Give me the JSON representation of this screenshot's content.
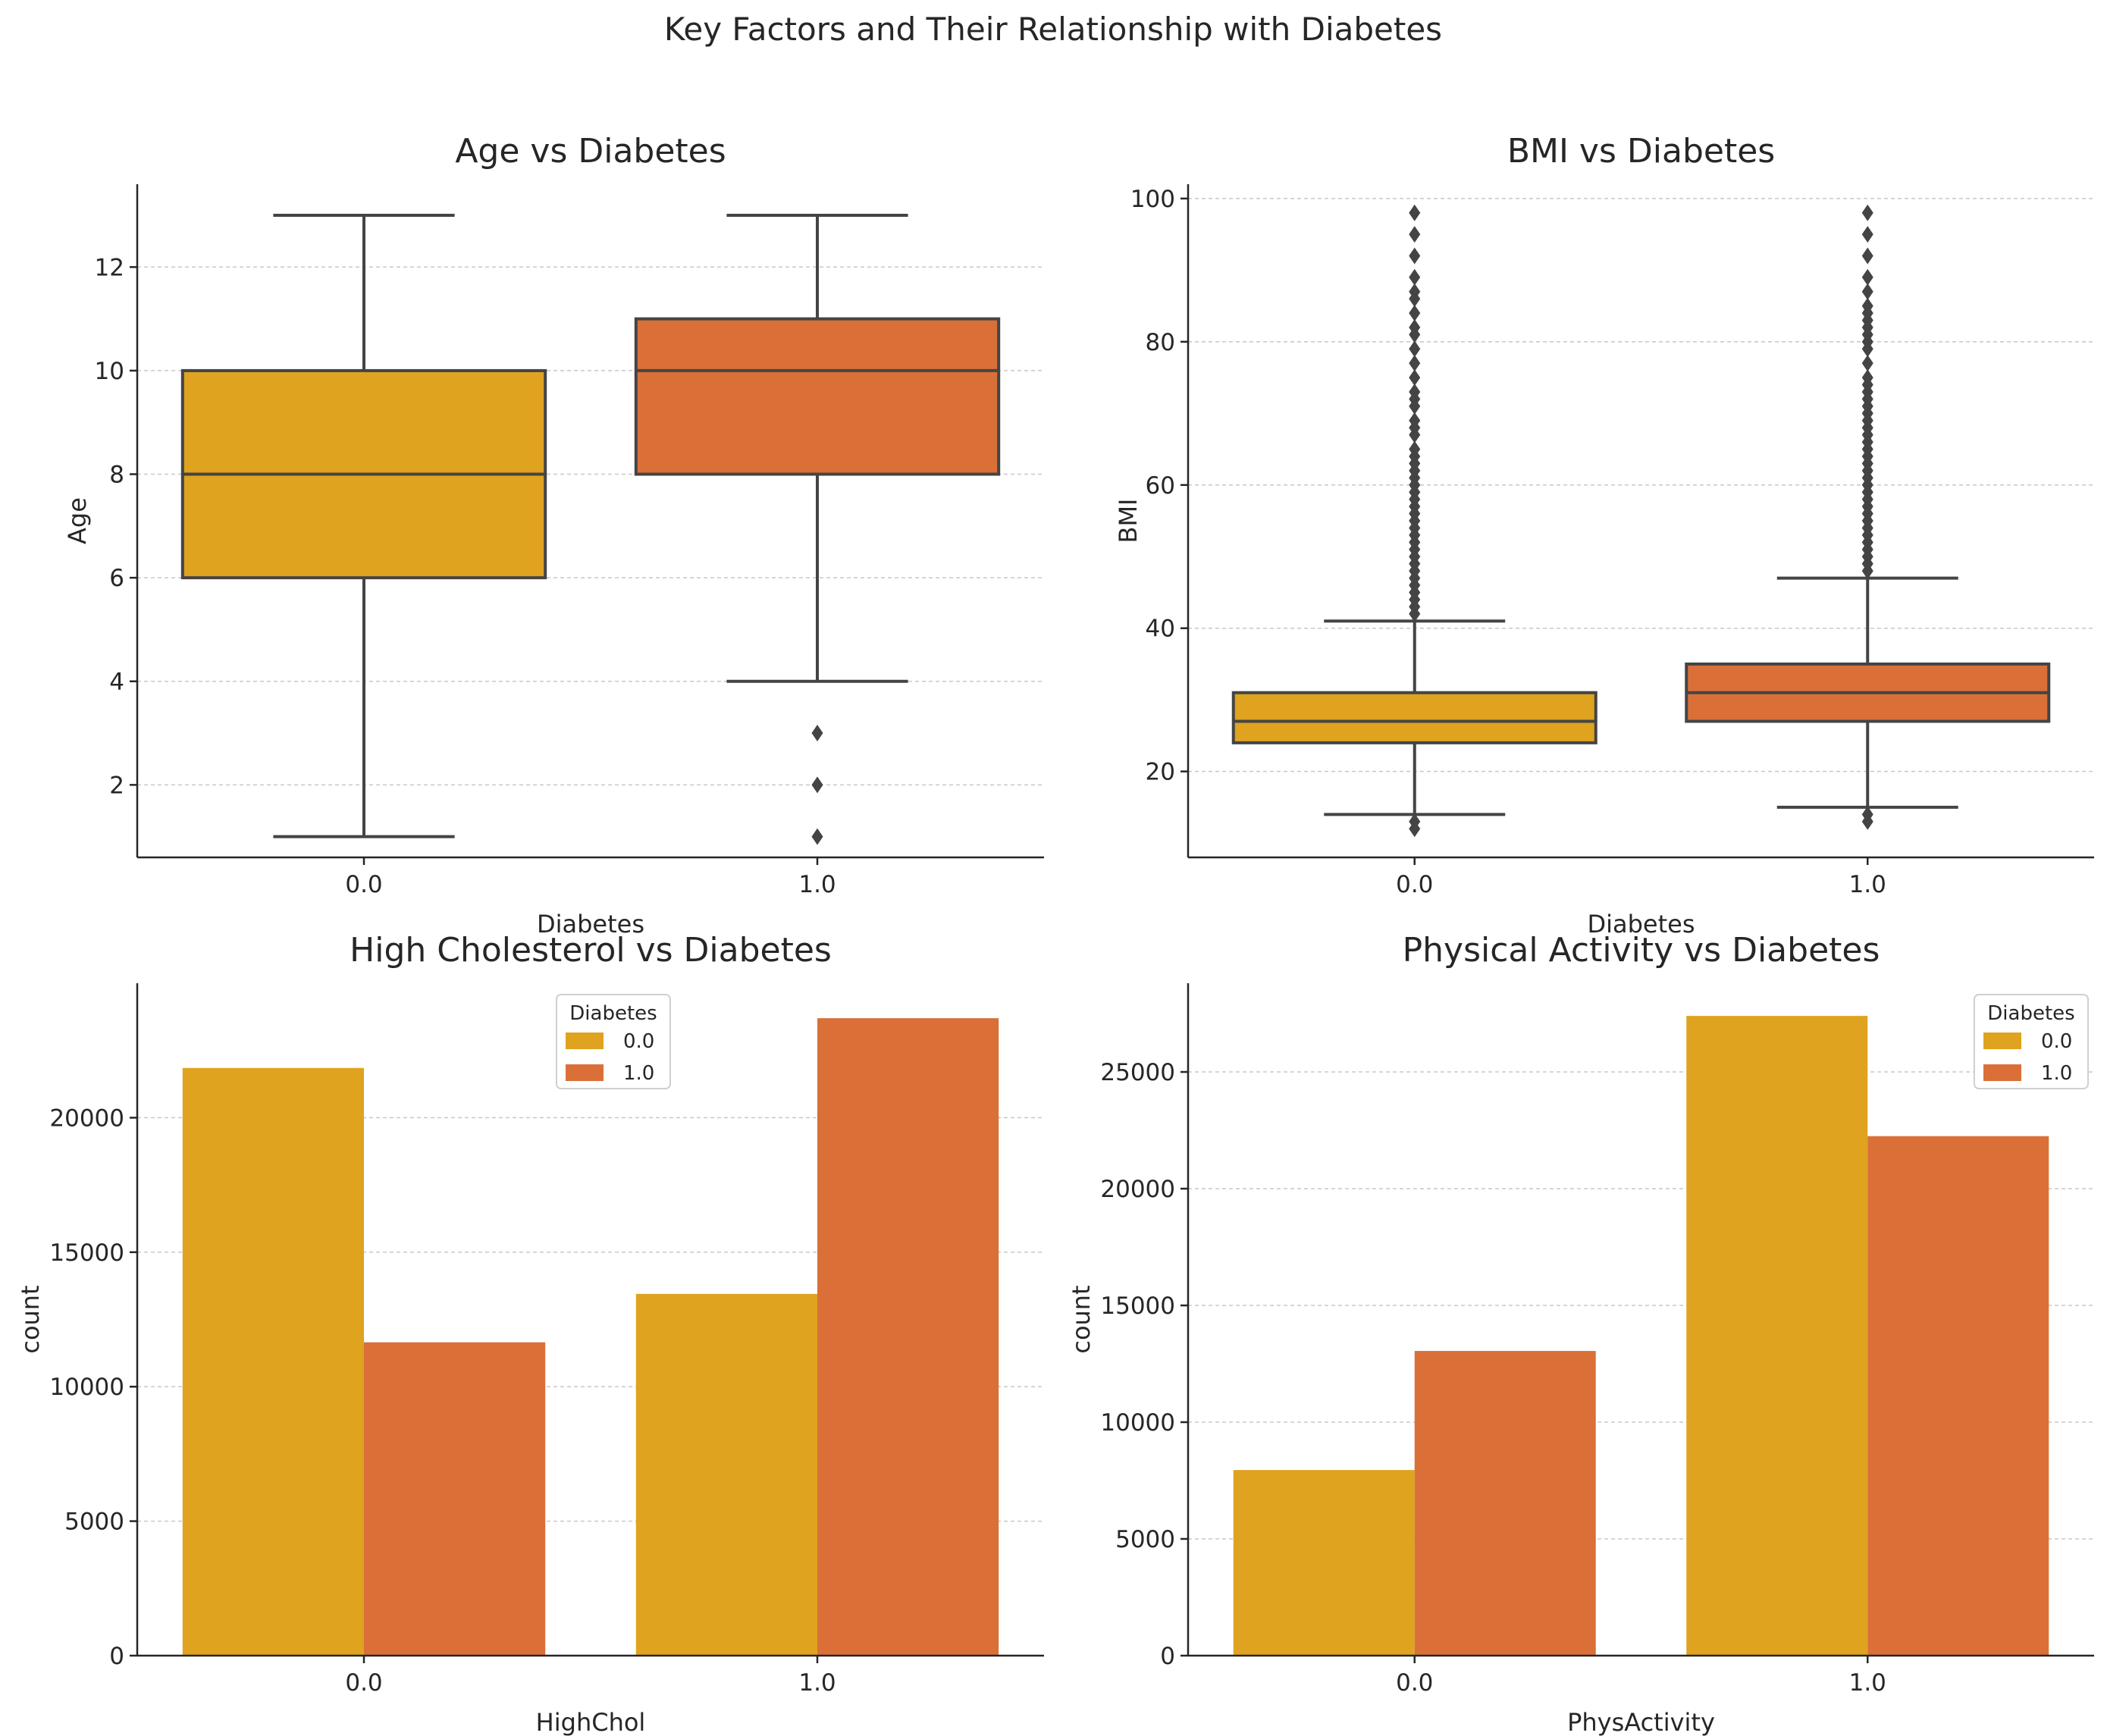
{
  "figure": {
    "title": "Key Factors and Their Relationship with Diabetes"
  },
  "colors": {
    "0.0": "#DFA31F",
    "1.0": "#DA7038",
    "line": "#444444",
    "axis": "#262626",
    "grid": "#c8c8c8"
  },
  "chart_data": [
    {
      "type": "box",
      "title": "Age vs Diabetes",
      "xlabel": "Diabetes",
      "ylabel": "Age",
      "categories": [
        "0.0",
        "1.0"
      ],
      "ylim": [
        0.6,
        13.6
      ],
      "yticks": [
        2,
        4,
        6,
        8,
        10,
        12
      ],
      "grid": "y",
      "boxes": [
        {
          "category": "0.0",
          "whisker_low": 1,
          "q1": 6,
          "median": 8,
          "q3": 10,
          "whisker_high": 13,
          "outliers": []
        },
        {
          "category": "1.0",
          "whisker_low": 4,
          "q1": 8,
          "median": 10,
          "q3": 11,
          "whisker_high": 13,
          "outliers": [
            1,
            2,
            3
          ]
        }
      ]
    },
    {
      "type": "box",
      "title": "BMI vs Diabetes",
      "xlabel": "Diabetes",
      "ylabel": "BMI",
      "categories": [
        "0.0",
        "1.0"
      ],
      "ylim": [
        8,
        102
      ],
      "yticks": [
        20,
        40,
        60,
        80,
        100
      ],
      "grid": "y",
      "boxes": [
        {
          "category": "0.0",
          "whisker_low": 14,
          "q1": 24,
          "median": 27,
          "q3": 31,
          "whisker_high": 41,
          "outliers": [
            12,
            13,
            42,
            43,
            44,
            45,
            46,
            47,
            48,
            49,
            50,
            51,
            52,
            53,
            54,
            55,
            56,
            57,
            58,
            59,
            60,
            61,
            62,
            63,
            64,
            65,
            67,
            68,
            69,
            71,
            72,
            73,
            75,
            77,
            79,
            81,
            82,
            84,
            86,
            87,
            89,
            92,
            95,
            98
          ]
        },
        {
          "category": "1.0",
          "whisker_low": 15,
          "q1": 27,
          "median": 31,
          "q3": 35,
          "whisker_high": 47,
          "outliers": [
            13,
            14,
            48,
            49,
            50,
            51,
            52,
            53,
            54,
            55,
            56,
            57,
            58,
            59,
            60,
            61,
            62,
            63,
            64,
            65,
            66,
            67,
            68,
            69,
            70,
            71,
            72,
            73,
            74,
            75,
            77,
            79,
            80,
            81,
            82,
            83,
            84,
            85,
            87,
            89,
            92,
            95,
            98
          ]
        }
      ]
    },
    {
      "type": "bar",
      "title": "High Cholesterol vs Diabetes",
      "xlabel": "HighChol",
      "ylabel": "count",
      "categories": [
        "0.0",
        "1.0"
      ],
      "ylim": [
        0,
        25000
      ],
      "yticks": [
        0,
        5000,
        10000,
        15000,
        20000
      ],
      "grid": "y",
      "legend": {
        "title": "Diabetes",
        "position": "upper-center"
      },
      "series": [
        {
          "name": "0.0",
          "values": [
            21850,
            13450
          ]
        },
        {
          "name": "1.0",
          "values": [
            11650,
            23700
          ]
        }
      ]
    },
    {
      "type": "bar",
      "title": "Physical Activity vs Diabetes",
      "xlabel": "PhysActivity",
      "ylabel": "count",
      "categories": [
        "0.0",
        "1.0"
      ],
      "ylim": [
        0,
        28800
      ],
      "yticks": [
        0,
        5000,
        10000,
        15000,
        20000,
        25000
      ],
      "grid": "y",
      "legend": {
        "title": "Diabetes",
        "position": "upper-right"
      },
      "series": [
        {
          "name": "0.0",
          "values": [
            7950,
            27400
          ]
        },
        {
          "name": "1.0",
          "values": [
            13050,
            22250
          ]
        }
      ]
    }
  ]
}
